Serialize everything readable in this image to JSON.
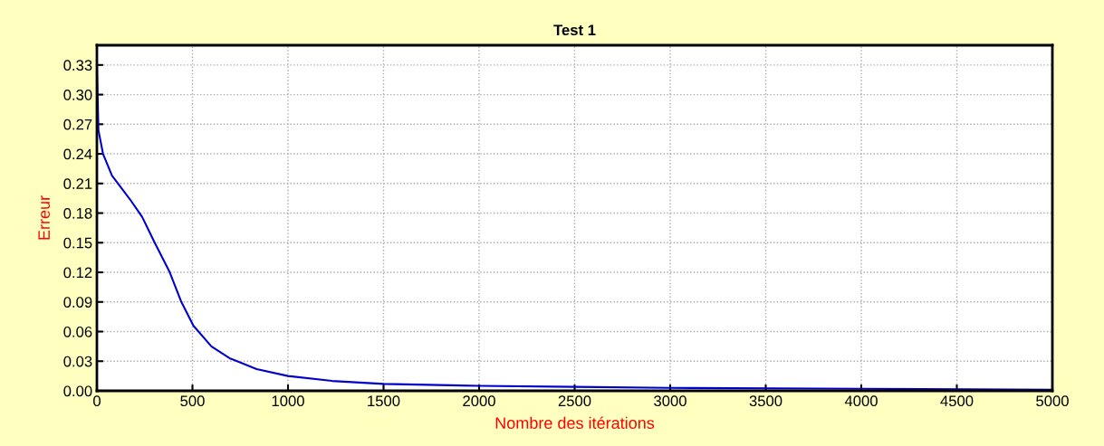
{
  "chart_data": {
    "type": "line",
    "title": "Test 1",
    "xlabel": "Nombre des itérations",
    "ylabel": "Erreur",
    "series": [
      {
        "color": "#0000cc",
        "x": [
          0,
          8,
          32,
          79,
          173,
          237,
          300,
          379,
          442,
          505,
          599,
          694,
          836,
          1000,
          1230,
          1500,
          2000,
          2500,
          3000,
          4000,
          5000
        ],
        "values": [
          0.33,
          0.264,
          0.24,
          0.218,
          0.194,
          0.176,
          0.151,
          0.121,
          0.09,
          0.066,
          0.045,
          0.033,
          0.022,
          0.015,
          0.01,
          0.007,
          0.005,
          0.004,
          0.003,
          0.002,
          0.001
        ]
      }
    ],
    "xlim": [
      0,
      5000
    ],
    "xticks": [
      0,
      500,
      1000,
      1500,
      2000,
      2500,
      3000,
      3500,
      4000,
      4500,
      5000
    ],
    "ylim": [
      0,
      0.35
    ],
    "yticks": [
      {
        "value": 0,
        "label": "0.00"
      },
      {
        "value": 0.03,
        "label": "0.03"
      },
      {
        "value": 0.06,
        "label": "0.06"
      },
      {
        "value": 0.09,
        "label": "0.09"
      },
      {
        "value": 0.12,
        "label": "0.12"
      },
      {
        "value": 0.15,
        "label": "0.15"
      },
      {
        "value": 0.18,
        "label": "0.18"
      },
      {
        "value": 0.21,
        "label": "0.21"
      },
      {
        "value": 0.24,
        "label": "0.24"
      },
      {
        "value": 0.27,
        "label": "0.27"
      },
      {
        "value": 0.3,
        "label": "0.30"
      },
      {
        "value": 0.33,
        "label": "0.33"
      }
    ],
    "grid": true,
    "line_style": "solid",
    "marker": "none"
  }
}
